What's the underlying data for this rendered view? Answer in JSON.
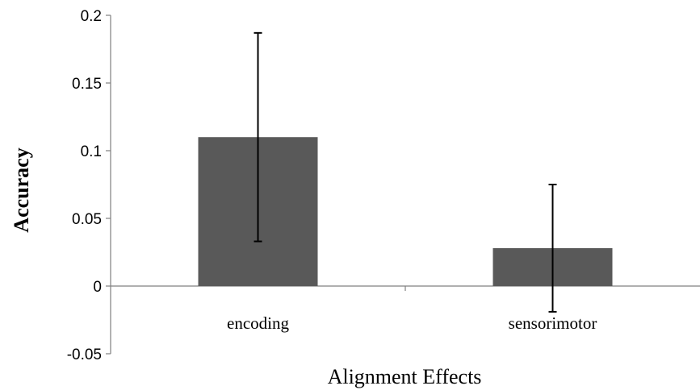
{
  "chart_data": {
    "type": "bar",
    "categories": [
      "encoding",
      "sensorimotor"
    ],
    "series": [
      {
        "values": [
          0.11,
          0.028
        ],
        "error_high": [
          0.187,
          0.075
        ],
        "error_low": [
          0.033,
          -0.019
        ]
      }
    ],
    "xlabel": "Alignment Effects",
    "ylabel": "Accuracy",
    "ylim": [
      -0.05,
      0.2
    ],
    "yticks": [
      "-0.05",
      "0",
      "0.05",
      "0.1",
      "0.15",
      "0.2"
    ],
    "ytick_values": [
      -0.05,
      0,
      0.05,
      0.1,
      0.15,
      0.2
    ],
    "grid": false,
    "legend": "none",
    "bar_color": "#595959"
  }
}
